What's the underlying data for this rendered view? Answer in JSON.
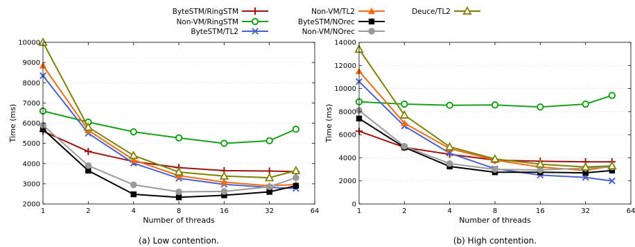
{
  "legend": {
    "placement": "top-center",
    "columns": [
      [
        "ByteSTM/RingSTM",
        "Non-VM/RingSTM",
        "ByteSTM/TL2"
      ],
      [
        "Non-VM/TL2",
        "ByteSTM/NOrec",
        "Non-VM/NOrec"
      ],
      [
        "Deuce/TL2"
      ]
    ]
  },
  "series_styles": [
    {
      "name": "ByteSTM/RingSTM",
      "color": "#a01212",
      "marker": "plus"
    },
    {
      "name": "Non-VM/RingSTM",
      "color": "#18a018",
      "marker": "circle-open"
    },
    {
      "name": "ByteSTM/TL2",
      "color": "#4a62d0",
      "marker": "cross"
    },
    {
      "name": "Non-VM/TL2",
      "color": "#f26a12",
      "marker": "triangle-filled"
    },
    {
      "name": "ByteSTM/NOrec",
      "color": "#000000",
      "marker": "square-filled"
    },
    {
      "name": "Non-VM/NOrec",
      "color": "#9a9a9a",
      "marker": "circle-filled"
    },
    {
      "name": "Deuce/TL2",
      "color": "#808000",
      "marker": "triangle-open"
    }
  ],
  "chart_data": [
    {
      "type": "line",
      "caption": "(a) Low contention.",
      "xlabel": "Number of threads",
      "ylabel": "Time (ms)",
      "xscale": "log2",
      "xlim": [
        1,
        64
      ],
      "ylim": [
        2000,
        10000
      ],
      "xticks": [
        1,
        2,
        4,
        8,
        16,
        32,
        64
      ],
      "yticks": [
        2000,
        3000,
        4000,
        5000,
        6000,
        7000,
        8000,
        9000,
        10000
      ],
      "x": [
        1,
        2,
        4,
        8,
        16,
        32,
        48
      ],
      "grid": "horizontal",
      "series": [
        {
          "name": "ByteSTM/RingSTM",
          "values": [
            5600,
            4600,
            4100,
            3800,
            3650,
            3630,
            3600
          ]
        },
        {
          "name": "Non-VM/RingSTM",
          "values": [
            6600,
            6050,
            5570,
            5270,
            5000,
            5130,
            5700
          ]
        },
        {
          "name": "ByteSTM/TL2",
          "values": [
            8350,
            5500,
            4020,
            3270,
            2970,
            2820,
            2770
          ]
        },
        {
          "name": "Non-VM/TL2",
          "values": [
            8850,
            5650,
            4180,
            3400,
            3080,
            2900,
            2960
          ]
        },
        {
          "name": "ByteSTM/NOrec",
          "values": [
            5700,
            3650,
            2480,
            2330,
            2430,
            2600,
            2900
          ]
        },
        {
          "name": "Non-VM/NOrec",
          "values": [
            5900,
            3900,
            2950,
            2600,
            2620,
            2850,
            3300
          ]
        },
        {
          "name": "Deuce/TL2",
          "values": [
            10000,
            5800,
            4400,
            3580,
            3380,
            3300,
            3650
          ]
        }
      ]
    },
    {
      "type": "line",
      "caption": "(b) High contention.",
      "xlabel": "Number of threads",
      "ylabel": "Time (ms)",
      "xscale": "log2",
      "xlim": [
        1,
        64
      ],
      "ylim": [
        0,
        14000
      ],
      "xticks": [
        1,
        2,
        4,
        8,
        16,
        32,
        64
      ],
      "yticks": [
        0,
        2000,
        4000,
        6000,
        8000,
        10000,
        12000,
        14000
      ],
      "x": [
        1,
        2,
        4,
        8,
        16,
        32,
        48
      ],
      "grid": "horizontal",
      "series": [
        {
          "name": "ByteSTM/RingSTM",
          "values": [
            6300,
            4900,
            4300,
            3800,
            3700,
            3650,
            3650
          ]
        },
        {
          "name": "Non-VM/RingSTM",
          "values": [
            8850,
            8650,
            8550,
            8580,
            8400,
            8650,
            9400
          ]
        },
        {
          "name": "ByteSTM/TL2",
          "values": [
            10600,
            6750,
            4400,
            3050,
            2500,
            2300,
            2000
          ]
        },
        {
          "name": "Non-VM/TL2",
          "values": [
            11500,
            7000,
            4800,
            3800,
            3200,
            2900,
            3300
          ]
        },
        {
          "name": "ByteSTM/NOrec",
          "values": [
            7400,
            4900,
            3250,
            2750,
            2750,
            2700,
            2900
          ]
        },
        {
          "name": "Non-VM/NOrec",
          "values": [
            8100,
            5000,
            3500,
            3000,
            2950,
            3100,
            3200
          ]
        },
        {
          "name": "Deuce/TL2",
          "values": [
            13400,
            7700,
            4950,
            3900,
            3450,
            3200,
            3300
          ]
        }
      ]
    }
  ]
}
